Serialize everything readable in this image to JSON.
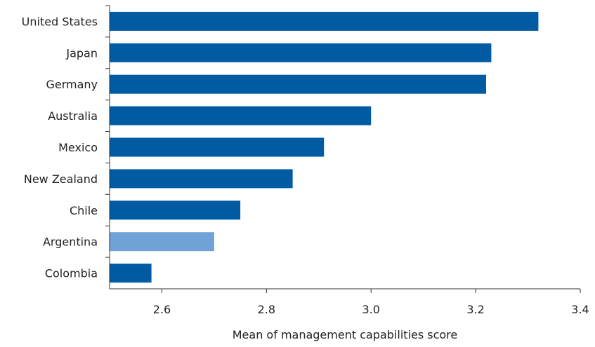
{
  "chart_data": {
    "type": "bar",
    "orientation": "horizontal",
    "categories": [
      "United States",
      "Japan",
      "Germany",
      "Australia",
      "Mexico",
      "New Zealand",
      "Chile",
      "Argentina",
      "Colombia"
    ],
    "values": [
      3.32,
      3.23,
      3.22,
      3.0,
      2.91,
      2.85,
      2.75,
      2.7,
      2.58
    ],
    "highlight": "Argentina",
    "colors": {
      "default": "#005ba3",
      "highlight": "#6fa3d8"
    },
    "xlabel": "Mean of management capabilities score",
    "ylabel": "",
    "title": "",
    "xlim": [
      2.5,
      3.4
    ],
    "xticks": [
      2.6,
      2.8,
      3.0,
      3.2,
      3.4
    ],
    "xtick_labels": [
      "2.6",
      "2.8",
      "3.0",
      "3.2",
      "3.4"
    ],
    "grid": false,
    "legend": "none"
  }
}
